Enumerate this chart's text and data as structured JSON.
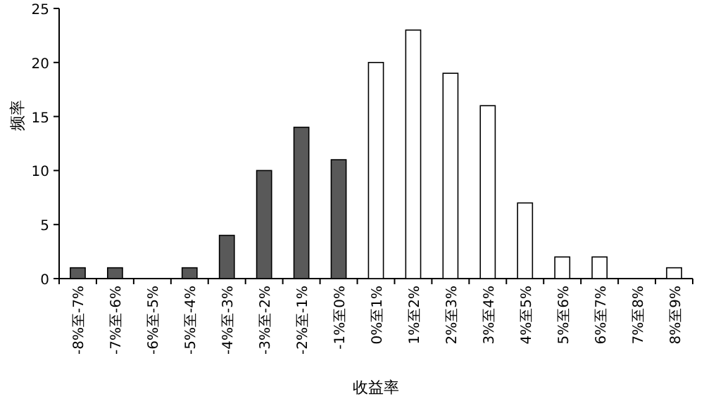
{
  "chart_data": {
    "type": "bar",
    "xlabel": "收益率",
    "ylabel": "频率",
    "categories": [
      "-8%至-7%",
      "-7%至-6%",
      "-6%至-5%",
      "-5%至-4%",
      "-4%至-3%",
      "-3%至-2%",
      "-2%至-1%",
      "-1%至0%",
      "0%至1%",
      "1%至2%",
      "2%至3%",
      "3%至4%",
      "4%至5%",
      "5%至6%",
      "6%至7%",
      "7%至8%",
      "8%至9%"
    ],
    "values": [
      1,
      1,
      0,
      1,
      4,
      10,
      14,
      11,
      20,
      23,
      19,
      16,
      7,
      2,
      2,
      0,
      1
    ],
    "colors": [
      "#595959",
      "#595959",
      "#595959",
      "#595959",
      "#595959",
      "#595959",
      "#595959",
      "#595959",
      "#ffffff",
      "#ffffff",
      "#ffffff",
      "#ffffff",
      "#ffffff",
      "#ffffff",
      "#ffffff",
      "#ffffff",
      "#ffffff"
    ],
    "ylim": [
      0,
      25
    ],
    "yticks": [
      0,
      5,
      10,
      15,
      20,
      25
    ]
  }
}
